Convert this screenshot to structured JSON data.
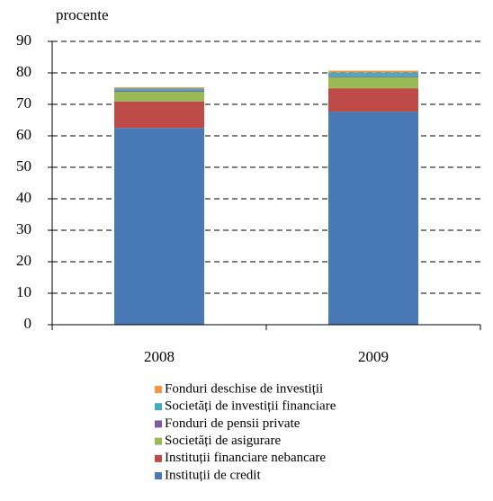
{
  "chart_data": {
    "type": "stacked_bar",
    "y_label": "procente",
    "categories": [
      "2008",
      "2009"
    ],
    "series": [
      {
        "name": "Instituții de credit",
        "color": "#4a7ab5",
        "values": [
          62.5,
          67.7
        ]
      },
      {
        "name": "Instituții financiare nebancare",
        "color": "#be4b48",
        "values": [
          8.4,
          7.4
        ]
      },
      {
        "name": "Societăți de asigurare",
        "color": "#98b954",
        "values": [
          3.1,
          3.5
        ]
      },
      {
        "name": "Fonduri de pensii private",
        "color": "#7d5fa0",
        "values": [
          0.3,
          0.3
        ]
      },
      {
        "name": "Societăți de investiții financiare",
        "color": "#46aac5",
        "values": [
          0.7,
          1.2
        ]
      },
      {
        "name": "Fonduri deschise de investiții",
        "color": "#f79646",
        "values": [
          0.4,
          0.6
        ]
      }
    ],
    "ylim": [
      0,
      90
    ],
    "yticks": [
      0,
      10,
      20,
      30,
      40,
      50,
      60,
      70,
      80,
      90
    ],
    "grid": true
  }
}
